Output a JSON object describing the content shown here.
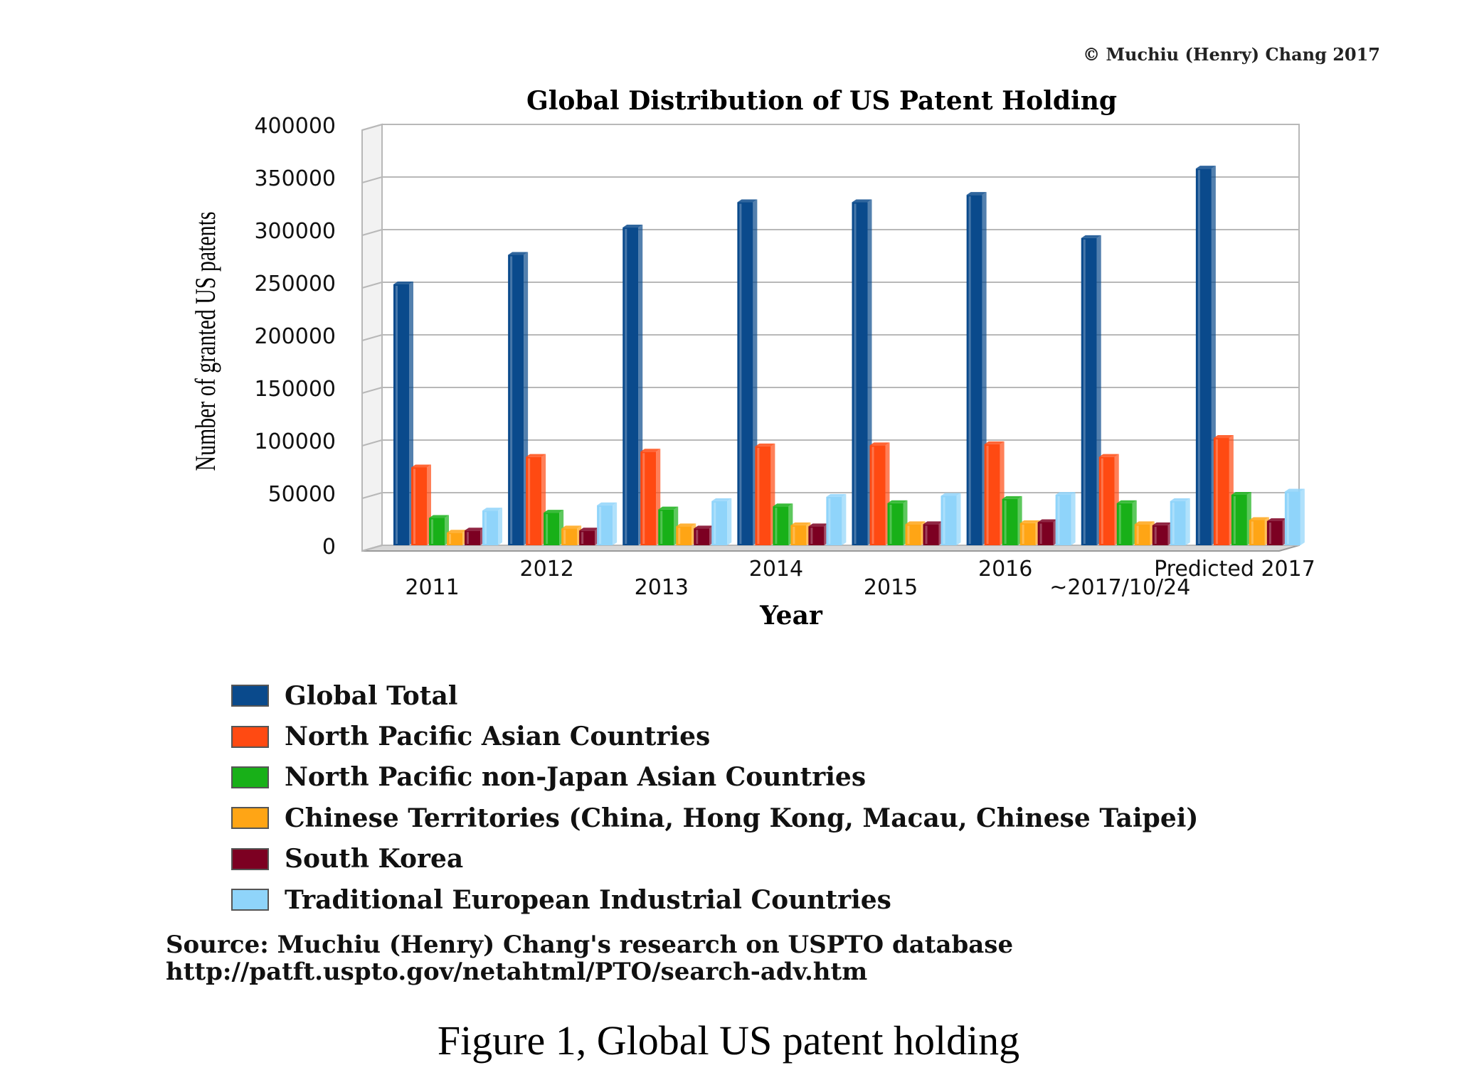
{
  "copyright": "© Muchiu (Henry) Chang 2017",
  "source": {
    "line1": "Source: Muchiu (Henry) Chang's research on USPTO database",
    "line2": "http://patft.uspto.gov/netahtml/PTO/search-adv.htm"
  },
  "caption": "Figure 1, Global US patent holding",
  "chart_data": {
    "type": "bar",
    "title": "Global Distribution of US Patent Holding",
    "xlabel": "Year",
    "ylabel": "Number of granted US patents",
    "ylim": [
      0,
      400000
    ],
    "yticks": [
      0,
      50000,
      100000,
      150000,
      200000,
      250000,
      300000,
      350000,
      400000
    ],
    "yticklabels": [
      "0",
      "50000",
      "100000",
      "150000",
      "200000",
      "250000",
      "300000",
      "350000",
      "400000"
    ],
    "categories": [
      "2011",
      "2012",
      "2013",
      "2014",
      "2015",
      "2016",
      "~2017/10/24",
      "Predicted 2017"
    ],
    "grid": true,
    "legend_position": "bottom",
    "series": [
      {
        "name": "Global Total",
        "color": "#0a4a8c",
        "values": [
          248000,
          276000,
          302000,
          326000,
          326000,
          333000,
          292000,
          358000
        ]
      },
      {
        "name": "North Pacific Asian Countries",
        "color": "#ff4a12",
        "values": [
          74000,
          84000,
          89000,
          94000,
          95000,
          96000,
          84000,
          102000
        ]
      },
      {
        "name": "North Pacific non-Japan Asian Countries",
        "color": "#18b018",
        "values": [
          26000,
          31000,
          34000,
          37000,
          40000,
          44000,
          40000,
          48000
        ]
      },
      {
        "name": "Chinese Territories (China, Hong Kong, Macau, Chinese Taipei)",
        "color": "#ffa515",
        "values": [
          12000,
          16000,
          18000,
          19000,
          20000,
          21000,
          20000,
          24000
        ]
      },
      {
        "name": "South Korea",
        "color": "#7c0022",
        "values": [
          14000,
          14000,
          16000,
          18000,
          20000,
          22000,
          19000,
          23000
        ]
      },
      {
        "name": "Traditional European Industrial Countries",
        "color": "#8fd4fa",
        "values": [
          33000,
          38000,
          42000,
          46000,
          47000,
          48000,
          42000,
          51000
        ]
      }
    ]
  }
}
